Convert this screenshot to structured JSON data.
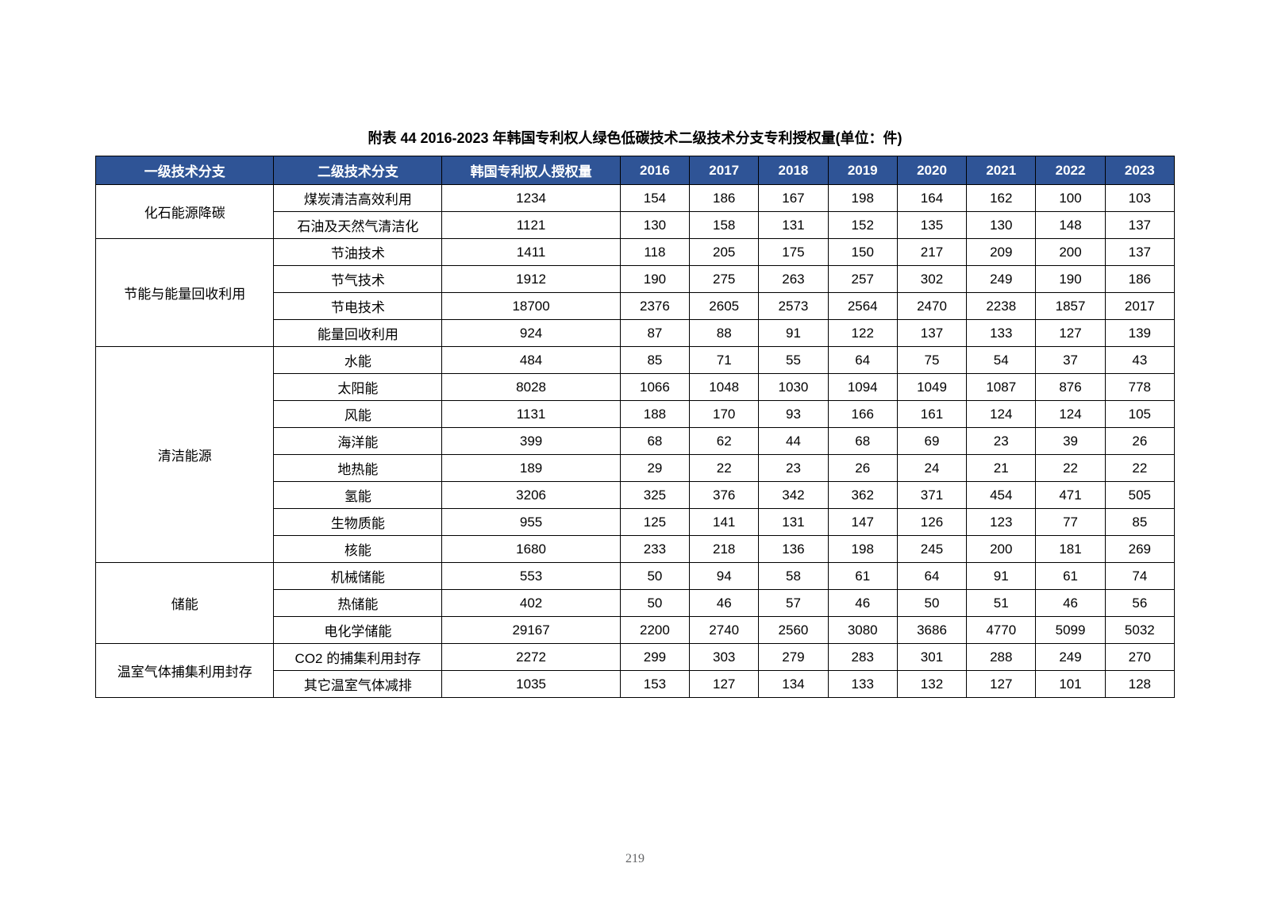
{
  "title": "附表 44 2016-2023 年韩国专利权人绿色低碳技术二级技术分支专利授权量(单位：件)",
  "pageNumber": "219",
  "headers": {
    "level1": "一级技术分支",
    "level2": "二级技术分支",
    "total": "韩国专利权人授权量",
    "y2016": "2016",
    "y2017": "2017",
    "y2018": "2018",
    "y2019": "2019",
    "y2020": "2020",
    "y2021": "2021",
    "y2022": "2022",
    "y2023": "2023"
  },
  "groups": [
    {
      "name": "化石能源降碳",
      "rows": [
        {
          "l2": "煤炭清洁高效利用",
          "total": "1234",
          "y": [
            "154",
            "186",
            "167",
            "198",
            "164",
            "162",
            "100",
            "103"
          ]
        },
        {
          "l2": "石油及天然气清洁化",
          "total": "1121",
          "y": [
            "130",
            "158",
            "131",
            "152",
            "135",
            "130",
            "148",
            "137"
          ]
        }
      ]
    },
    {
      "name": "节能与能量回收利用",
      "rows": [
        {
          "l2": "节油技术",
          "total": "1411",
          "y": [
            "118",
            "205",
            "175",
            "150",
            "217",
            "209",
            "200",
            "137"
          ]
        },
        {
          "l2": "节气技术",
          "total": "1912",
          "y": [
            "190",
            "275",
            "263",
            "257",
            "302",
            "249",
            "190",
            "186"
          ]
        },
        {
          "l2": "节电技术",
          "total": "18700",
          "y": [
            "2376",
            "2605",
            "2573",
            "2564",
            "2470",
            "2238",
            "1857",
            "2017"
          ]
        },
        {
          "l2": "能量回收利用",
          "total": "924",
          "y": [
            "87",
            "88",
            "91",
            "122",
            "137",
            "133",
            "127",
            "139"
          ]
        }
      ]
    },
    {
      "name": "清洁能源",
      "rows": [
        {
          "l2": "水能",
          "total": "484",
          "y": [
            "85",
            "71",
            "55",
            "64",
            "75",
            "54",
            "37",
            "43"
          ]
        },
        {
          "l2": "太阳能",
          "total": "8028",
          "y": [
            "1066",
            "1048",
            "1030",
            "1094",
            "1049",
            "1087",
            "876",
            "778"
          ]
        },
        {
          "l2": "风能",
          "total": "1131",
          "y": [
            "188",
            "170",
            "93",
            "166",
            "161",
            "124",
            "124",
            "105"
          ]
        },
        {
          "l2": "海洋能",
          "total": "399",
          "y": [
            "68",
            "62",
            "44",
            "68",
            "69",
            "23",
            "39",
            "26"
          ]
        },
        {
          "l2": "地热能",
          "total": "189",
          "y": [
            "29",
            "22",
            "23",
            "26",
            "24",
            "21",
            "22",
            "22"
          ]
        },
        {
          "l2": "氢能",
          "total": "3206",
          "y": [
            "325",
            "376",
            "342",
            "362",
            "371",
            "454",
            "471",
            "505"
          ]
        },
        {
          "l2": "生物质能",
          "total": "955",
          "y": [
            "125",
            "141",
            "131",
            "147",
            "126",
            "123",
            "77",
            "85"
          ]
        },
        {
          "l2": "核能",
          "total": "1680",
          "y": [
            "233",
            "218",
            "136",
            "198",
            "245",
            "200",
            "181",
            "269"
          ]
        }
      ]
    },
    {
      "name": "储能",
      "rows": [
        {
          "l2": "机械储能",
          "total": "553",
          "y": [
            "50",
            "94",
            "58",
            "61",
            "64",
            "91",
            "61",
            "74"
          ]
        },
        {
          "l2": "热储能",
          "total": "402",
          "y": [
            "50",
            "46",
            "57",
            "46",
            "50",
            "51",
            "46",
            "56"
          ]
        },
        {
          "l2": "电化学储能",
          "total": "29167",
          "y": [
            "2200",
            "2740",
            "2560",
            "3080",
            "3686",
            "4770",
            "5099",
            "5032"
          ]
        }
      ]
    },
    {
      "name": "温室气体捕集利用封存",
      "rows": [
        {
          "l2": "CO2 的捕集利用封存",
          "total": "2272",
          "y": [
            "299",
            "303",
            "279",
            "283",
            "301",
            "288",
            "249",
            "270"
          ]
        },
        {
          "l2": "其它温室气体减排",
          "total": "1035",
          "y": [
            "153",
            "127",
            "134",
            "133",
            "132",
            "127",
            "101",
            "128"
          ]
        }
      ]
    }
  ],
  "styling": {
    "header_bg": "#2f5496",
    "header_color": "#ffffff",
    "cell_bg": "#ffffff",
    "border_color": "#000000",
    "text_color": "#000000",
    "title_fontsize": 18,
    "cell_fontsize": 17,
    "page_bg": "#ffffff"
  }
}
